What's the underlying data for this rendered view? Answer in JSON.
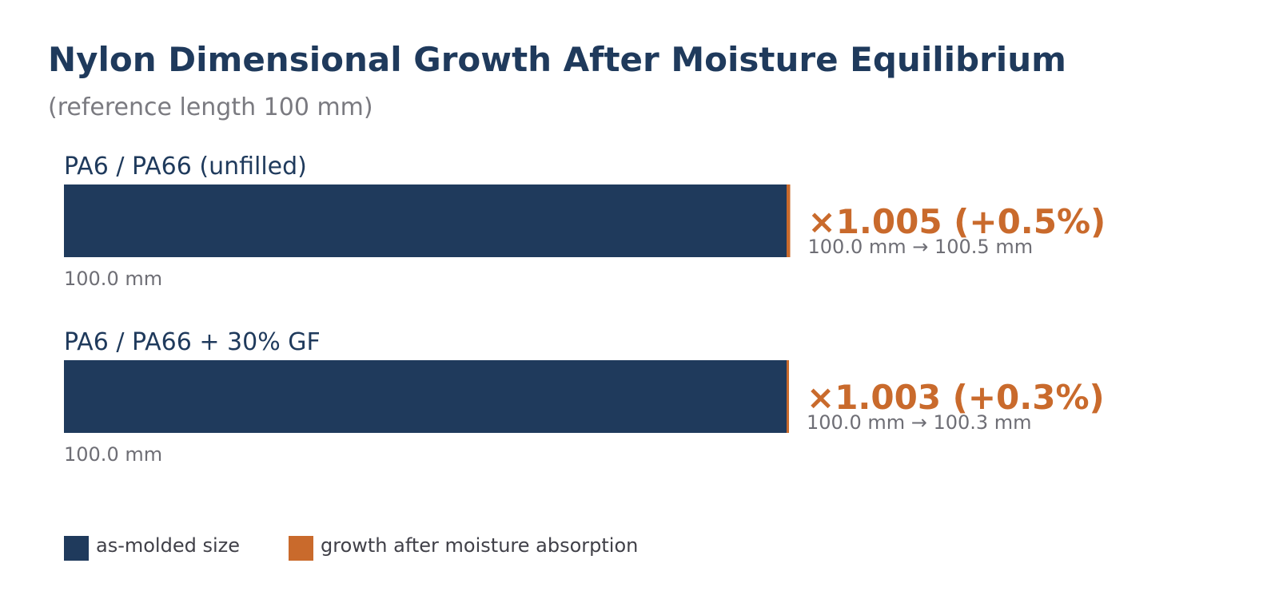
{
  "chart_data": {
    "type": "bar",
    "title": "Nylon Dimensional Growth After Moisture Equilibrium",
    "subtitle": "(reference length 100 mm)",
    "categories": [
      "PA6 / PA66  (unfilled)",
      "PA6 / PA66 + 30% GF"
    ],
    "series": [
      {
        "name": "as-molded size",
        "values": [
          100.0,
          100.0
        ]
      },
      {
        "name": "growth after moisture absorption",
        "values": [
          0.5,
          0.3
        ]
      }
    ],
    "base_labels": [
      "100.0 mm",
      "100.0 mm"
    ],
    "factor_labels": [
      "×1.005  (+0.5%)",
      "×1.003  (+0.3%)"
    ],
    "detail_labels": [
      "100.0 mm → 100.5 mm",
      "100.0 mm → 100.3 mm"
    ],
    "colors": {
      "base": "#1f3a5c",
      "growth": "#c96a2c",
      "title": "#1f3a5c",
      "muted": "#6e6e75"
    },
    "legend": {
      "position": "bottom-left"
    }
  }
}
